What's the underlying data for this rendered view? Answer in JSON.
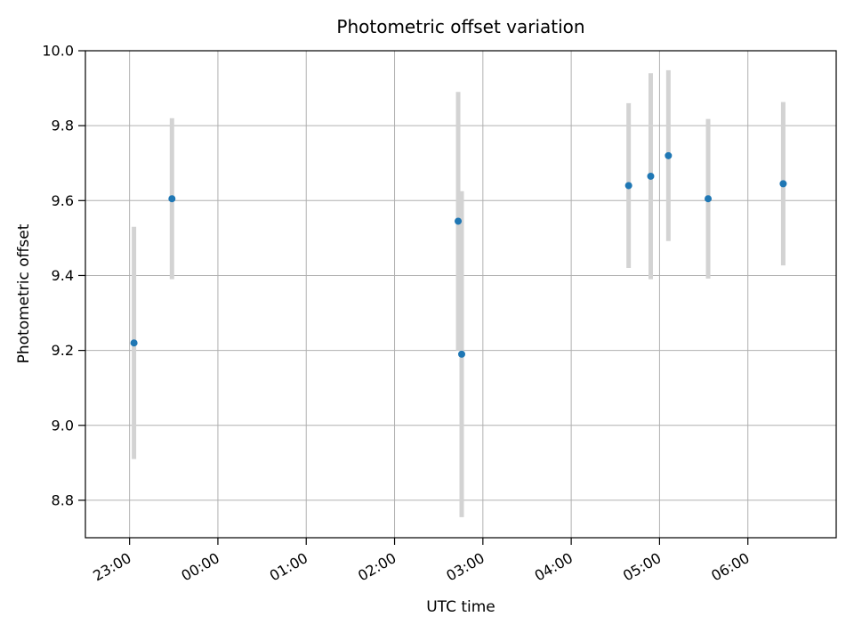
{
  "chart_data": {
    "type": "scatter",
    "title": "Photometric offset variation",
    "xlabel": "UTC time",
    "ylabel": "Photometric offset",
    "grid": true,
    "legend": "none",
    "xlim_hours": [
      22.5,
      31.0
    ],
    "ylim": [
      8.7,
      10.0
    ],
    "x_ticks": [
      {
        "hour": 23,
        "label": "23:00"
      },
      {
        "hour": 24,
        "label": "00:00"
      },
      {
        "hour": 25,
        "label": "01:00"
      },
      {
        "hour": 26,
        "label": "02:00"
      },
      {
        "hour": 27,
        "label": "03:00"
      },
      {
        "hour": 28,
        "label": "04:00"
      },
      {
        "hour": 29,
        "label": "05:00"
      },
      {
        "hour": 30,
        "label": "06:00"
      }
    ],
    "y_ticks": [
      8.8,
      9.0,
      9.2,
      9.4,
      9.6,
      9.8,
      10.0
    ],
    "marker_color": "#1f77b4",
    "errorbar_color": "#d3d3d3",
    "grid_color": "#b0b0b0",
    "axis_color": "#000000",
    "points": [
      {
        "utc": "23:03",
        "t": 23.05,
        "y": 9.22,
        "yerr": 0.31
      },
      {
        "utc": "23:29",
        "t": 23.48,
        "y": 9.605,
        "yerr": 0.215
      },
      {
        "utc": "02:43",
        "t": 26.72,
        "y": 9.545,
        "yerr": 0.345
      },
      {
        "utc": "02:46",
        "t": 26.76,
        "y": 9.19,
        "yerr": 0.435
      },
      {
        "utc": "04:39",
        "t": 28.65,
        "y": 9.64,
        "yerr": 0.22
      },
      {
        "utc": "04:54",
        "t": 28.9,
        "y": 9.665,
        "yerr": 0.275
      },
      {
        "utc": "05:06",
        "t": 29.1,
        "y": 9.72,
        "yerr": 0.228
      },
      {
        "utc": "05:33",
        "t": 29.55,
        "y": 9.605,
        "yerr": 0.213
      },
      {
        "utc": "06:24",
        "t": 30.4,
        "y": 9.645,
        "yerr": 0.218
      }
    ]
  }
}
